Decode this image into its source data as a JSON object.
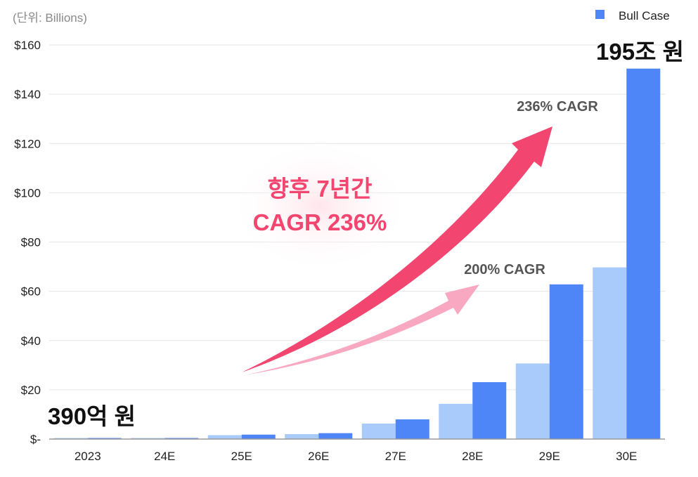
{
  "unit_label": "(단위: Billions)",
  "legend": {
    "label": "Bull Case",
    "color": "#4f86f7"
  },
  "annotations": {
    "start_value": "390억 원",
    "end_value": "195조 원",
    "headline_line1": "향후 7년간",
    "headline_line2": "CAGR 236%",
    "cagr_high": "236% CAGR",
    "cagr_low": "200% CAGR"
  },
  "colors": {
    "bull": "#4f86f7",
    "base": "#a9cbfb",
    "arrow_high": "#f2456f",
    "arrow_low": "#f9a8c1",
    "headline": "#f2456f",
    "grid": "#e6e6e6",
    "axis": "#9a9a9a"
  },
  "chart_data": {
    "type": "bar",
    "title": "",
    "xlabel": "",
    "ylabel": "",
    "categories": [
      "2023",
      "24E",
      "25E",
      "26E",
      "27E",
      "28E",
      "29E",
      "30E"
    ],
    "yticks": [
      {
        "value": 0,
        "label": "$-"
      },
      {
        "value": 20,
        "label": "$20"
      },
      {
        "value": 40,
        "label": "$40"
      },
      {
        "value": 60,
        "label": "$60"
      },
      {
        "value": 80,
        "label": "$80"
      },
      {
        "value": 100,
        "label": "$100"
      },
      {
        "value": 120,
        "label": "$120"
      },
      {
        "value": 140,
        "label": "$140"
      },
      {
        "value": 160,
        "label": "$160"
      }
    ],
    "ylim": [
      0,
      160
    ],
    "grid": true,
    "legend_position": "top-right",
    "series": [
      {
        "values": [
          0.04,
          0.2,
          1.6,
          2.0,
          6.3,
          14.3,
          30.7,
          69.7
        ]
      },
      {
        "name": "Bull Case",
        "values": [
          0.04,
          0.3,
          1.8,
          2.4,
          8.0,
          23.1,
          62.8,
          150.4
        ]
      }
    ]
  }
}
